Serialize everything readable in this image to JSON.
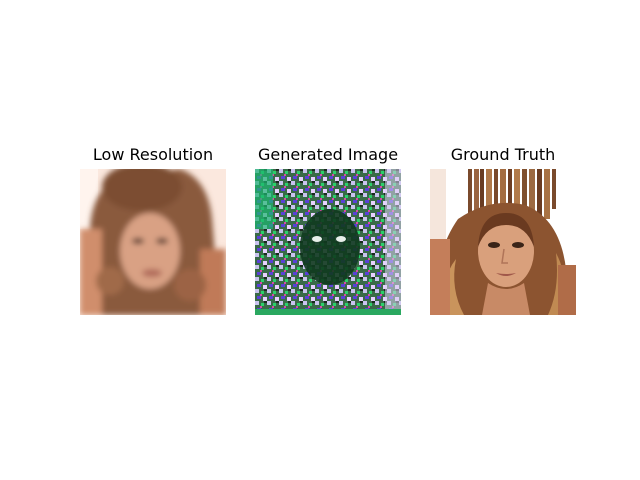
{
  "panels": [
    {
      "title": "Low Resolution",
      "image": "blurry-face-portrait"
    },
    {
      "title": "Generated Image",
      "image": "noisy-colorful-artifact-image"
    },
    {
      "title": "Ground Truth",
      "image": "sharp-face-portrait"
    }
  ]
}
